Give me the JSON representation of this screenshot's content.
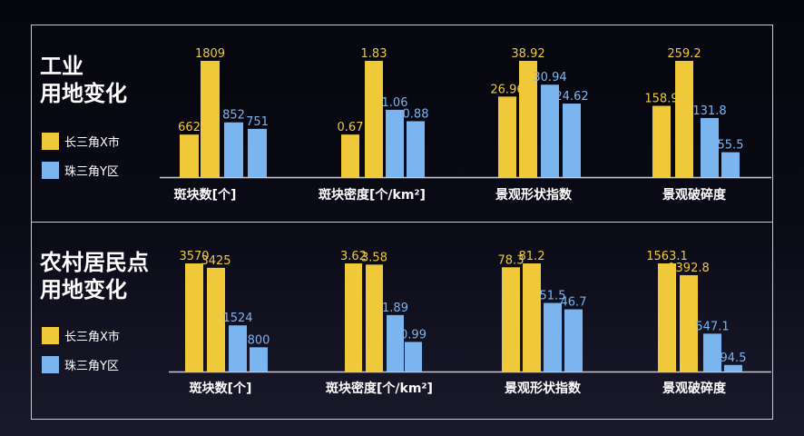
{
  "colors": {
    "series1": "#efc93a",
    "series2": "#7ab5ef",
    "text": "#ffffff",
    "axis": "#c9c9d2"
  },
  "panels": [
    {
      "title_line1": "工业",
      "title_line2": "用地变化",
      "legend": [
        "长三角X市",
        "珠三角Y区"
      ]
    },
    {
      "title_line1": "农村居民点",
      "title_line2": "用地变化",
      "legend": [
        "长三角X市",
        "珠三角Y区"
      ]
    }
  ],
  "chart_data": [
    {
      "type": "bar",
      "categories": [
        "斑块数[个]",
        "斑块密度[个/km²]",
        "景观形状指数",
        "景观破碎度"
      ],
      "series": [
        {
          "name": "长三角X市",
          "values": [
            [
              662,
              1809
            ],
            [
              0.67,
              1.83
            ],
            [
              26.96,
              38.92
            ],
            [
              158.9,
              259.2
            ]
          ]
        },
        {
          "name": "珠三角Y区",
          "values": [
            [
              852,
              751
            ],
            [
              1.06,
              0.88
            ],
            [
              30.94,
              24.62
            ],
            [
              131.8,
              55.5
            ]
          ]
        }
      ],
      "value_labels": [
        [
          "662",
          "1809",
          "852",
          "751"
        ],
        [
          "0.67",
          "1.83",
          "1.06",
          "0.88"
        ],
        [
          "26.96",
          "38.92",
          "30.94",
          "24.62"
        ],
        [
          "158.9",
          "259.2",
          "131.8",
          "55.5"
        ]
      ],
      "legend_position": "left"
    },
    {
      "type": "bar",
      "categories": [
        "斑块数[个]",
        "斑块密度[个/km²]",
        "景观形状指数",
        "景观破碎度"
      ],
      "series": [
        {
          "name": "长三角X市",
          "values": [
            [
              3570,
              3425
            ],
            [
              3.62,
              3.58
            ],
            [
              78.3,
              81.2
            ],
            [
              1563.1,
              1392.8
            ]
          ]
        },
        {
          "name": "珠三角Y区",
          "values": [
            [
              1524,
              800
            ],
            [
              1.89,
              0.99
            ],
            [
              51.5,
              46.7
            ],
            [
              547.1,
              94.5
            ]
          ]
        }
      ],
      "value_labels": [
        [
          "3570",
          "3425",
          "1524",
          "800"
        ],
        [
          "3.62",
          "3.58",
          "1.89",
          "0.99"
        ],
        [
          "78.3",
          "81.2",
          "51.5",
          "46.7"
        ],
        [
          "1563.1",
          "1392.8",
          "547.1",
          "94.5"
        ]
      ],
      "legend_position": "left"
    }
  ]
}
